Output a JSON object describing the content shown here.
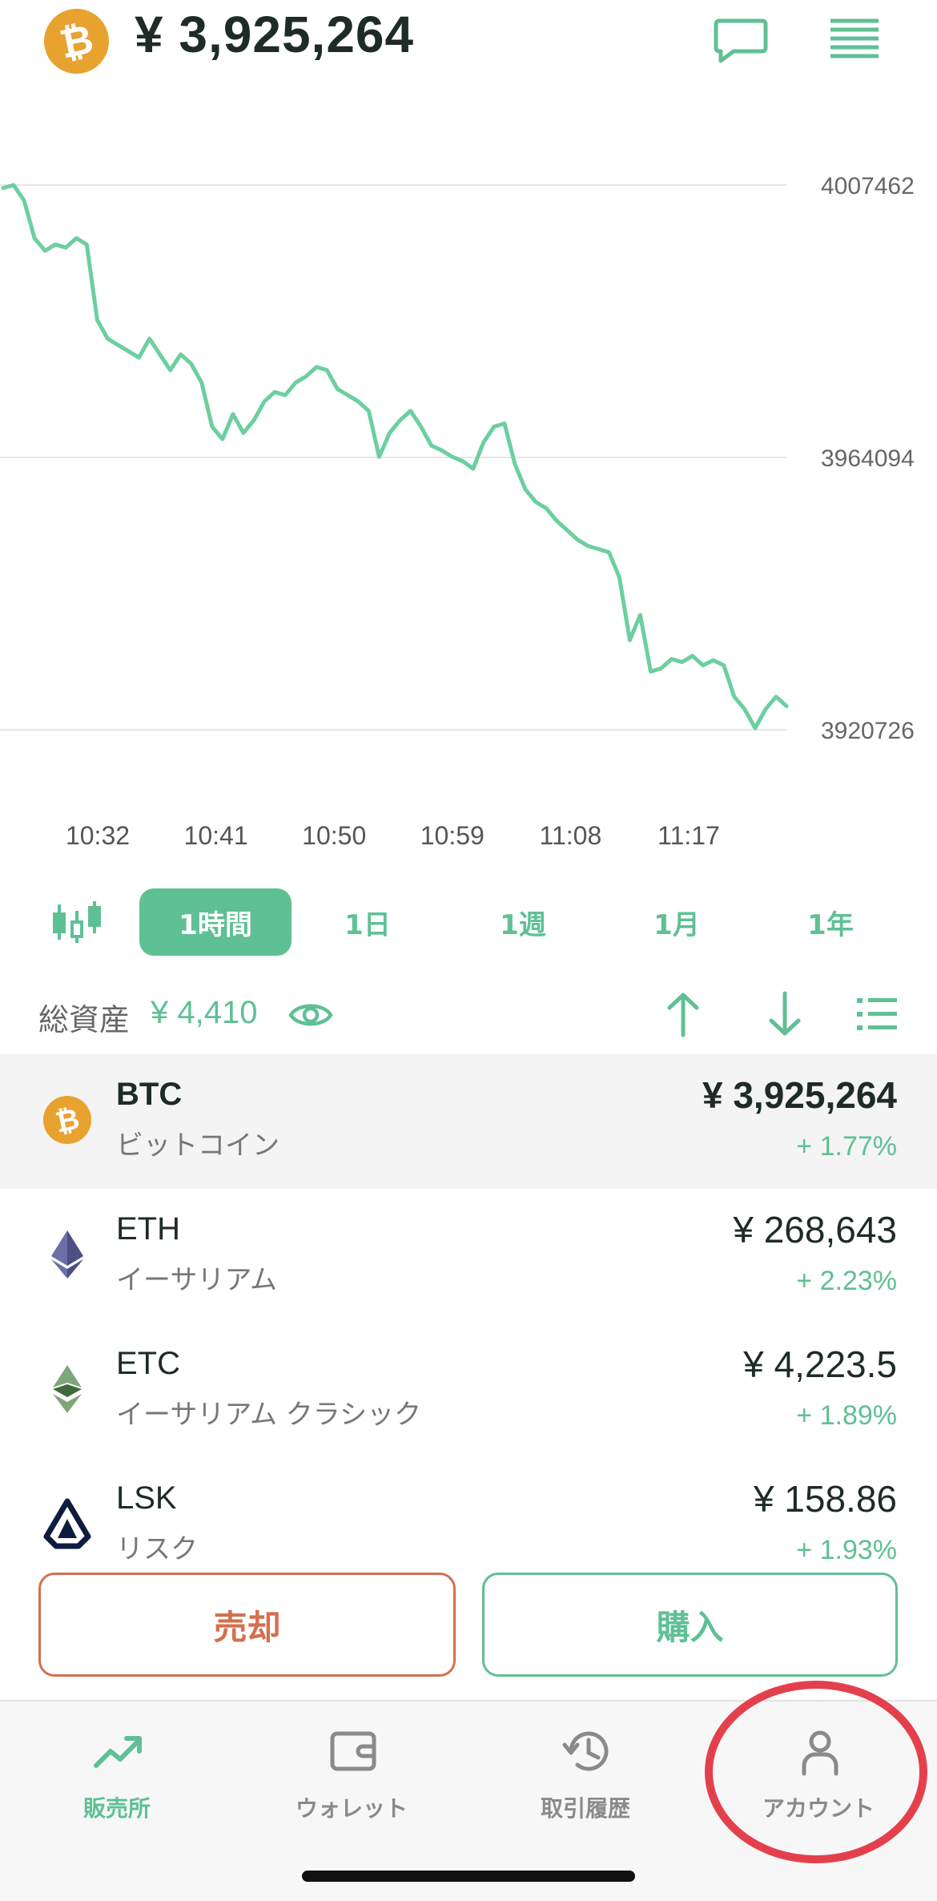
{
  "header": {
    "coin_symbol_glyph": "₿",
    "price": "¥ 3,925,264"
  },
  "chart_data": {
    "type": "line",
    "y_labels": [
      "4007462",
      "3964094",
      "3920726"
    ],
    "ylim": [
      3920726,
      4007462
    ],
    "x_tick_labels": [
      "10:32",
      "10:41",
      "10:50",
      "10:59",
      "11:08",
      "11:17"
    ],
    "series": [
      {
        "color": "#6ccf9f",
        "values": [
          4007000,
          4007462,
          4005000,
          3999000,
          3997000,
          3998000,
          3997500,
          3999000,
          3998000,
          3986000,
          3983000,
          3982000,
          3981000,
          3980000,
          3983000,
          3980500,
          3978000,
          3980500,
          3979000,
          3976000,
          3969000,
          3967000,
          3971000,
          3968000,
          3970000,
          3973000,
          3974500,
          3974000,
          3976000,
          3977000,
          3978500,
          3978000,
          3975000,
          3974000,
          3973000,
          3971500,
          3964200,
          3968000,
          3970000,
          3971500,
          3969000,
          3966000,
          3965200,
          3964200,
          3963500,
          3962300,
          3966500,
          3969000,
          3969500,
          3963000,
          3959000,
          3957000,
          3956000,
          3954000,
          3952500,
          3951000,
          3950000,
          3949500,
          3949000,
          3945000,
          3935000,
          3939000,
          3930000,
          3930500,
          3932000,
          3931500,
          3932500,
          3931000,
          3931800,
          3931000,
          3926000,
          3924000,
          3921000,
          3924000,
          3926000,
          3924500
        ]
      }
    ],
    "grid": true
  },
  "periods": {
    "candle_icon": "candlestick-icon",
    "items": [
      "1時間",
      "1日",
      "1週",
      "1月",
      "1年"
    ],
    "active": "1時間"
  },
  "assets": {
    "label": "総資産",
    "value": "¥ 4,410"
  },
  "coins": [
    {
      "symbol": "BTC",
      "name": "ビットコイン",
      "price": "¥ 3,925,264",
      "change": "+ 1.77%",
      "icon": "bitcoin-icon",
      "color": "#e8a230"
    },
    {
      "symbol": "ETH",
      "name": "イーサリアム",
      "price": "¥ 268,643",
      "change": "+ 2.23%",
      "icon": "ethereum-icon",
      "color": "#6b6fa6"
    },
    {
      "symbol": "ETC",
      "name": "イーサリアム クラシック",
      "price": "¥ 4,223.5",
      "change": "+ 1.89%",
      "icon": "ethereum-classic-icon",
      "color": "#5c8a5a"
    },
    {
      "symbol": "LSK",
      "name": "リスク",
      "price": "¥ 158.86",
      "change": "+ 1.93%",
      "icon": "lisk-icon",
      "color": "#0d1d3f"
    }
  ],
  "actions": {
    "sell": "売却",
    "buy": "購入"
  },
  "nav": [
    {
      "label": "販売所",
      "icon": "trend-icon",
      "active": true
    },
    {
      "label": "ウォレット",
      "icon": "wallet-icon",
      "active": false
    },
    {
      "label": "取引履歴",
      "icon": "history-icon",
      "active": false
    },
    {
      "label": "アカウント",
      "icon": "account-icon",
      "active": false
    }
  ],
  "colors": {
    "accent": "#5fc094",
    "sell": "#d4704e",
    "annotation": "#e4404c"
  }
}
